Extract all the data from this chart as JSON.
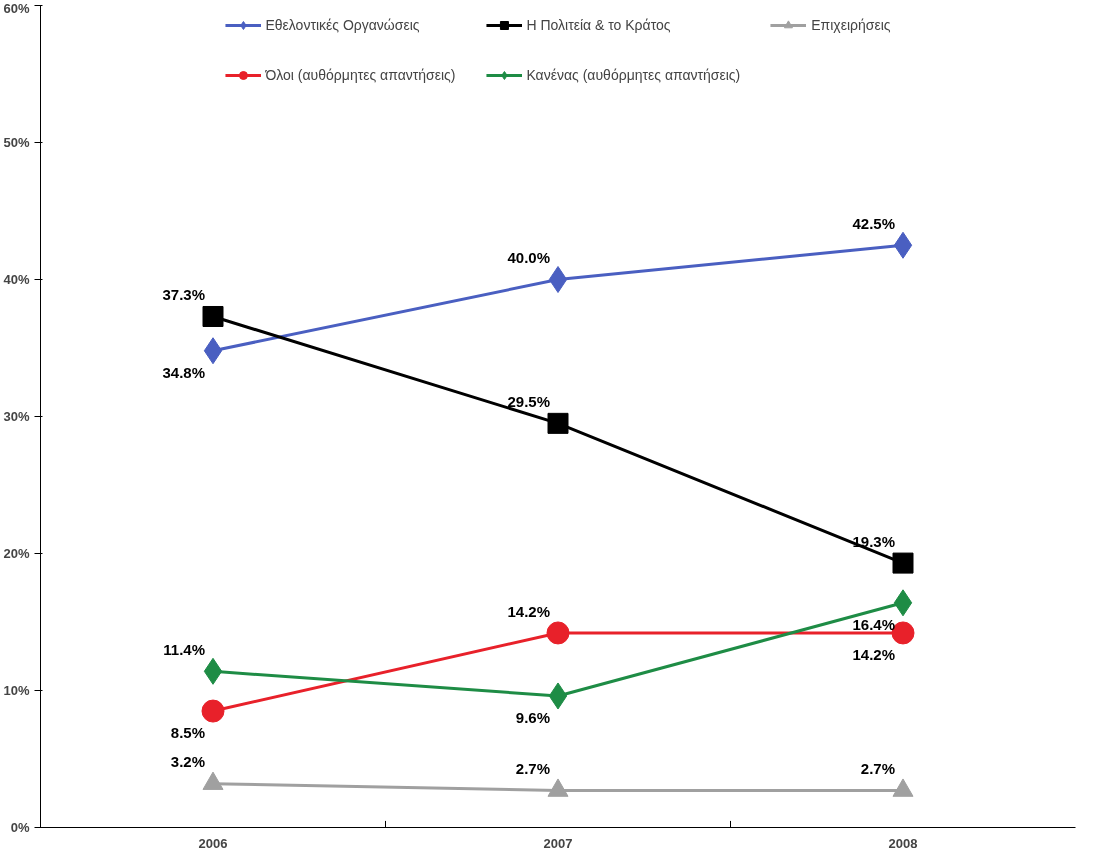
{
  "chart_data": {
    "type": "line",
    "categories": [
      "2006",
      "2007",
      "2008"
    ],
    "ylim": [
      0,
      60
    ],
    "yticks": [
      {
        "value": 0,
        "label": "0%"
      },
      {
        "value": 10,
        "label": "10%"
      },
      {
        "value": 20,
        "label": "20%"
      },
      {
        "value": 30,
        "label": "30%"
      },
      {
        "value": 40,
        "label": "40%"
      },
      {
        "value": 50,
        "label": "50%"
      },
      {
        "value": 60,
        "label": "60%"
      }
    ],
    "grid": false,
    "legend": "top",
    "line_style": "solid",
    "series": [
      {
        "name": "Εθελοντικές Οργανώσεις",
        "color": "#4a5fc1",
        "marker": "diamond",
        "values": [
          34.8,
          40.0,
          42.5
        ],
        "value_labels": [
          "34.8%",
          "40.0%",
          "42.5%"
        ]
      },
      {
        "name": "Η Πολιτεία & το Κράτος",
        "color": "#000000",
        "marker": "square",
        "values": [
          37.3,
          29.5,
          19.3
        ],
        "value_labels": [
          "37.3%",
          "29.5%",
          "19.3%"
        ]
      },
      {
        "name": "Επιχειρήσεις",
        "color": "#a0a0a0",
        "marker": "triangle",
        "values": [
          3.2,
          2.7,
          2.7
        ],
        "value_labels": [
          "3.2%",
          "2.7%",
          "2.7%"
        ]
      },
      {
        "name": "Όλοι (αυθόρμητες απαντήσεις)",
        "color": "#e8212a",
        "marker": "circle",
        "values": [
          8.5,
          14.2,
          14.2
        ],
        "value_labels": [
          "8.5%",
          "14.2%",
          "14.2%"
        ]
      },
      {
        "name": "Κανένας (αυθόρμητες απαντήσεις)",
        "color": "#1e8c45",
        "marker": "diamond",
        "values": [
          11.4,
          9.6,
          16.4
        ],
        "value_labels": [
          "11.4%",
          "9.6%",
          "16.4%"
        ]
      }
    ]
  }
}
